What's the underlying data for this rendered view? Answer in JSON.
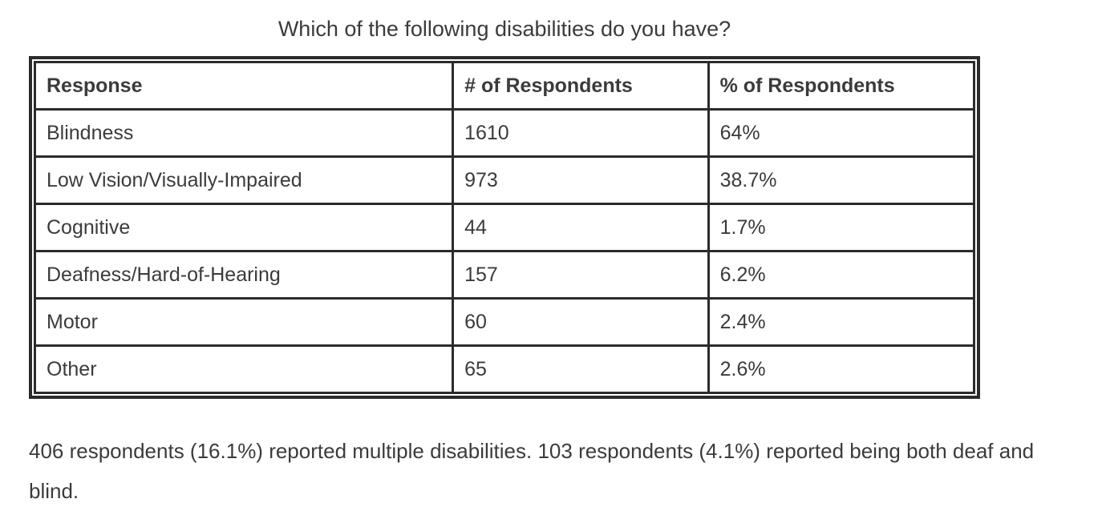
{
  "page": {
    "title": "Which of the following disabilities do you have?"
  },
  "table": {
    "headers": {
      "response": "Response",
      "count": "# of Respondents",
      "percent": "% of Respondents"
    },
    "rows": [
      {
        "response": "Blindness",
        "count": "1610",
        "percent": "64%"
      },
      {
        "response": "Low Vision/Visually-Impaired",
        "count": "973",
        "percent": "38.7%"
      },
      {
        "response": "Cognitive",
        "count": "44",
        "percent": "1.7%"
      },
      {
        "response": "Deafness/Hard-of-Hearing",
        "count": "157",
        "percent": "6.2%"
      },
      {
        "response": "Motor",
        "count": "60",
        "percent": "2.4%"
      },
      {
        "response": "Other",
        "count": "65",
        "percent": "2.6%"
      }
    ]
  },
  "note": "406 respondents (16.1%) reported multiple disabilities. 103 respondents (4.1%) reported being both deaf and blind.",
  "colors": {
    "text": "#3b3b3b",
    "border": "#2b2b2b",
    "background": "#ffffff"
  }
}
